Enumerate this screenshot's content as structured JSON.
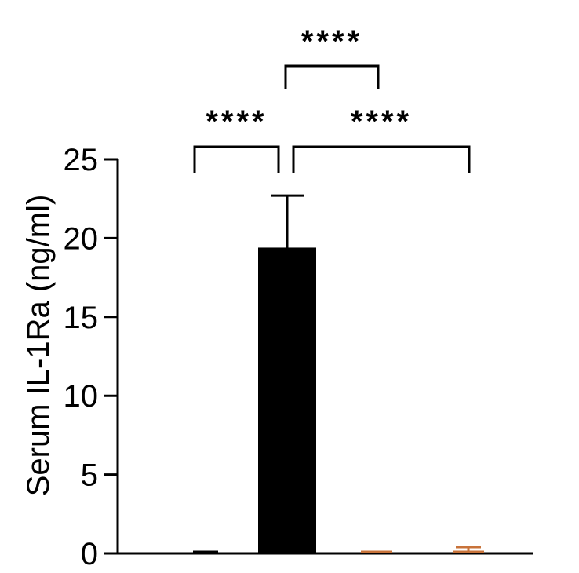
{
  "chart_data": {
    "type": "bar",
    "categories": [
      "",
      "",
      "",
      ""
    ],
    "values": [
      0.05,
      19.4,
      0.1,
      0.2
    ],
    "errors": [
      0,
      3.3,
      0,
      0.2
    ],
    "bar_colors": [
      "#000000",
      "#000000",
      "#c8733a",
      "#c8733a"
    ],
    "bar_fill": [
      true,
      true,
      false,
      false
    ],
    "title": "",
    "xlabel": "",
    "ylabel": "Serum IL-1Ra (ng/ml)",
    "ylim": [
      0,
      25
    ],
    "yticks": [
      0,
      5,
      10,
      15,
      20,
      25
    ],
    "grid": false,
    "legend": "none",
    "significance": [
      {
        "from": 0,
        "to": 1,
        "label": "****"
      },
      {
        "from": 1,
        "to": 3,
        "label": "****"
      },
      {
        "from": 1,
        "to": 2,
        "label": "****"
      }
    ]
  },
  "colors": {
    "axis": "#000000",
    "primary_bar": "#000000",
    "secondary_bar": "#c8733a"
  }
}
